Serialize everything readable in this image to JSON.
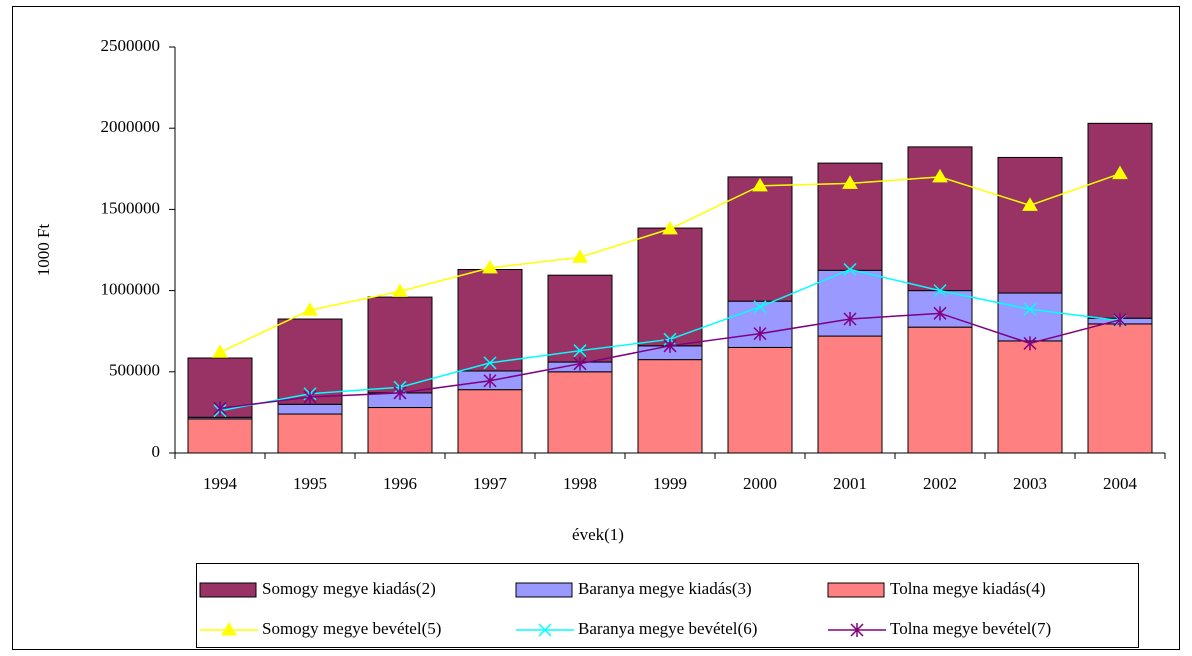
{
  "chart_data": {
    "type": "bar",
    "x_label": "évek(1)",
    "y_label": "1000 Ft",
    "categories": [
      "1994",
      "1995",
      "1996",
      "1997",
      "1998",
      "1999",
      "2000",
      "2001",
      "2002",
      "2003",
      "2004"
    ],
    "ylim": [
      0,
      2500000
    ],
    "yticks": [
      0,
      500000,
      1000000,
      1500000,
      2000000,
      2500000
    ],
    "stacked": true,
    "series": [
      {
        "name": "Tolna megye kiadás(4)",
        "kind": "bar",
        "color": "#ff8080",
        "values": [
          210000,
          240000,
          280000,
          390000,
          500000,
          575000,
          650000,
          720000,
          775000,
          690000,
          795000
        ]
      },
      {
        "name": "Baranya megye kiadás(3)",
        "kind": "bar",
        "color": "#9999ff",
        "values": [
          10000,
          60000,
          90000,
          115000,
          60000,
          85000,
          285000,
          405000,
          225000,
          295000,
          35000
        ]
      },
      {
        "name": "Somogy megye kiadás(2)",
        "kind": "bar",
        "color": "#993366",
        "values": [
          365000,
          525000,
          590000,
          625000,
          535000,
          725000,
          765000,
          660000,
          885000,
          835000,
          1200000
        ]
      },
      {
        "name": "Somogy megye bevétel(5)",
        "kind": "line",
        "marker": "triangle",
        "color": "#ffff00",
        "values": [
          620000,
          880000,
          995000,
          1140000,
          1205000,
          1380000,
          1645000,
          1660000,
          1700000,
          1525000,
          1720000
        ]
      },
      {
        "name": "Baranya megye bevétel(6)",
        "kind": "line",
        "marker": "x",
        "color": "#00ffff",
        "values": [
          260000,
          365000,
          405000,
          555000,
          630000,
          700000,
          900000,
          1130000,
          1000000,
          885000,
          815000
        ]
      },
      {
        "name": "Tolna megye bevétel(7)",
        "kind": "line",
        "marker": "star",
        "color": "#800080",
        "values": [
          275000,
          345000,
          370000,
          445000,
          550000,
          660000,
          735000,
          825000,
          860000,
          675000,
          820000
        ]
      }
    ],
    "legend_order": [
      2,
      1,
      0,
      3,
      4,
      5
    ],
    "legend": "bottom"
  }
}
